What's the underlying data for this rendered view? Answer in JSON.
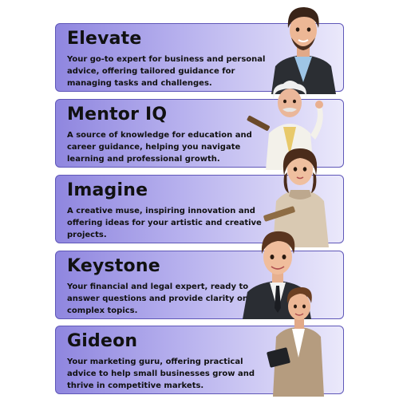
{
  "cards": [
    {
      "title": "Elevate",
      "description": "Your go-to expert for business and personal advice, offering tailored guidance for managing tasks and challenges."
    },
    {
      "title": "Mentor IQ",
      "description": "A source of knowledge for education and career guidance, helping you navigate learning and professional growth."
    },
    {
      "title": "Imagine",
      "description": "A creative muse, inspiring innovation and offering ideas for your artistic and creative projects."
    },
    {
      "title": "Keystone",
      "description": "Your financial and legal expert, ready to answer questions and provide clarity on complex topics."
    },
    {
      "title": "Gideon",
      "description": "Your marketing guru, offering practical advice to help small businesses grow and thrive in competitive markets."
    }
  ],
  "colors": {
    "card_start": "#8f86df",
    "card_end": "#ebe9fb",
    "border": "#5f57b8",
    "text": "#111111"
  },
  "icons": [
    "man-dark-suit-character",
    "scientist-mentor-character",
    "woman-artist-character",
    "businessman-character",
    "businessman-tablet-character"
  ]
}
